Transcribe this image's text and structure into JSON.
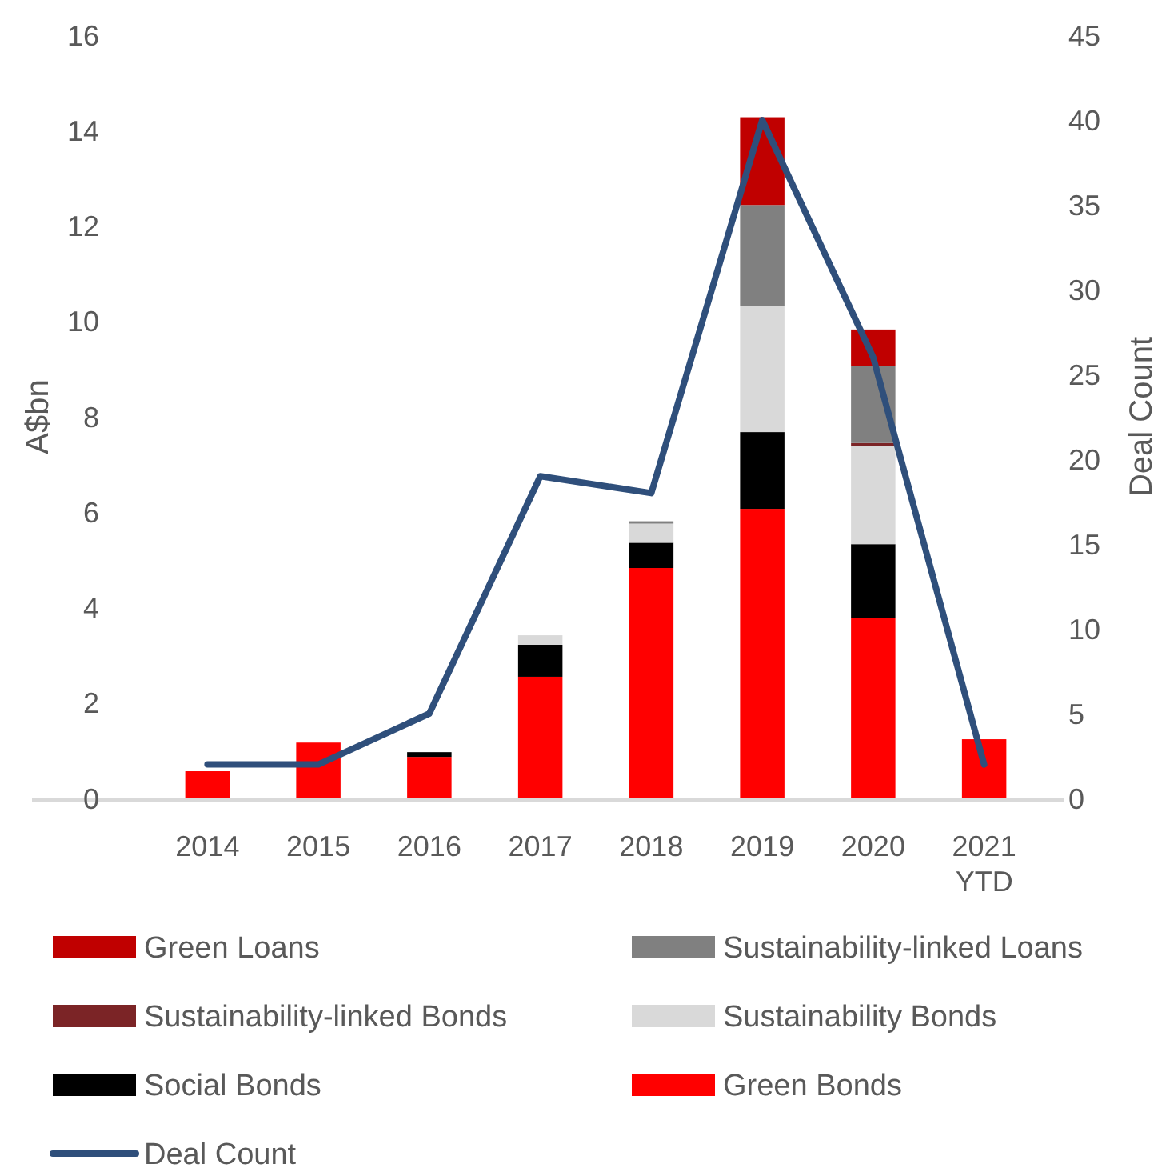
{
  "chart_data": {
    "type": "bar",
    "stacked": true,
    "categories": [
      "2014",
      "2015",
      "2016",
      "2017",
      "2018",
      "2019",
      "2020",
      "2021 YTD"
    ],
    "ylabel": "A$bn",
    "y2label": "Deal Count",
    "ylim": [
      0,
      16
    ],
    "yticks": [
      0,
      2,
      4,
      6,
      8,
      10,
      12,
      14,
      16
    ],
    "y2lim": [
      0,
      45
    ],
    "y2ticks": [
      0,
      5,
      10,
      15,
      20,
      25,
      30,
      35,
      40,
      45
    ],
    "grid": false,
    "legend": "bottom",
    "series": [
      {
        "name": "Green Bonds",
        "color": "#ff0000",
        "values": [
          0.57,
          1.17,
          0.87,
          2.55,
          4.83,
          6.07,
          3.79,
          1.24
        ]
      },
      {
        "name": "Social Bonds",
        "color": "#000000",
        "values": [
          null,
          null,
          0.1,
          0.67,
          0.53,
          1.61,
          1.54,
          null
        ]
      },
      {
        "name": "Sustainability Bonds",
        "color": "#d9d9d9",
        "values": [
          null,
          null,
          null,
          0.2,
          0.4,
          2.65,
          2.05,
          null
        ]
      },
      {
        "name": "Sustainability-linked Bonds",
        "color": "#7b2426",
        "values": [
          null,
          null,
          null,
          null,
          null,
          null,
          0.07,
          null
        ]
      },
      {
        "name": "Sustainability-linked Loans",
        "color": "#808080",
        "values": [
          null,
          null,
          null,
          null,
          0.05,
          2.11,
          1.61,
          null
        ]
      },
      {
        "name": "Green Loans",
        "color": "#c00000",
        "values": [
          null,
          null,
          null,
          null,
          null,
          1.84,
          0.77,
          null
        ]
      },
      {
        "name": "Deal Count",
        "type": "line",
        "axis": "y2",
        "color": "#2f4f7b",
        "values": [
          2,
          2,
          5,
          19,
          18,
          40,
          26,
          2
        ]
      }
    ]
  }
}
